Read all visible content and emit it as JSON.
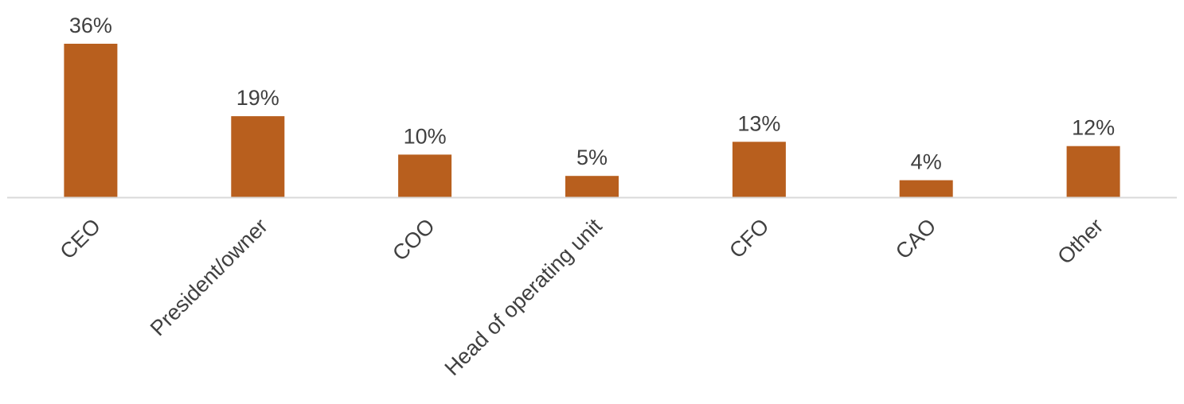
{
  "chart_data": {
    "type": "bar",
    "categories": [
      "CEO",
      "President/owner",
      "COO",
      "Head of operating unit",
      "CFO",
      "CAO",
      "Other"
    ],
    "values": [
      36,
      19,
      10,
      5,
      13,
      4,
      12
    ],
    "value_labels": [
      "36%",
      "19%",
      "10%",
      "5%",
      "13%",
      "4%",
      "12%"
    ],
    "title": "",
    "xlabel": "",
    "ylabel": "",
    "ylim": [
      0,
      36
    ],
    "grid": false,
    "legend": "none",
    "bar_color": "#B85F1E",
    "axis_color": "#D9D9D9",
    "text_color": "#404040"
  }
}
